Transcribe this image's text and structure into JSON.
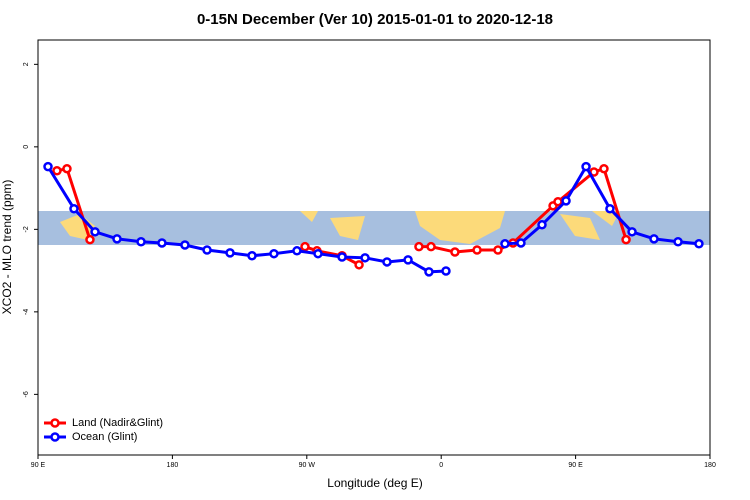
{
  "chart_data": {
    "type": "line",
    "title": "0-15N December (Ver 10)   2015-01-01 to 2020-12-18",
    "x_label": "Longitude (deg E)",
    "y_label": "XCO2 - MLO trend (ppm)",
    "xlim": [
      90,
      540
    ],
    "ylim": [
      -7.47,
      2.59
    ],
    "xticks": [
      {
        "value": 90,
        "label": "90 E"
      },
      180,
      {
        "value": 270,
        "label": "90 W"
      },
      {
        "value": 360,
        "label": "0"
      },
      {
        "value": 450,
        "label": "90 E"
      },
      {
        "value": 540,
        "label": "180"
      }
    ],
    "yticks": [
      2,
      0,
      -2,
      -4,
      -6
    ],
    "legend": "bottom-left",
    "series": [
      {
        "name": "Land (Nadir&Glint)",
        "color": "#ff0000",
        "x": [
          102.7,
          109.4,
          124.8,
          null,
          268.8,
          276.8,
          293.6,
          305.0,
          null,
          345.1,
          353.2,
          369.2,
          384.0,
          398.0,
          408.1,
          434.9,
          438.2,
          462.3,
          469.0,
          483.8
        ],
        "values": [
          -0.58,
          -0.53,
          -2.25,
          null,
          -2.42,
          -2.52,
          -2.64,
          -2.86,
          null,
          -2.42,
          -2.42,
          -2.55,
          -2.5,
          -2.5,
          -2.33,
          -1.43,
          -1.33,
          -0.61,
          -0.53,
          -2.25
        ]
      },
      {
        "name": "Ocean (Glint)",
        "color": "#0000ff",
        "x": [
          96.7,
          114.1,
          128.2,
          142.9,
          159.0,
          173.0,
          188.4,
          203.2,
          218.6,
          233.3,
          248.0,
          263.4,
          277.5,
          293.6,
          309.0,
          323.7,
          337.8,
          351.8,
          363.2,
          null,
          402.7,
          413.4,
          427.5,
          443.6,
          457.0,
          473.0,
          487.8,
          502.5,
          518.6,
          532.6
        ],
        "values": [
          -0.48,
          -1.5,
          -2.06,
          -2.23,
          -2.3,
          -2.33,
          -2.38,
          -2.5,
          -2.57,
          -2.64,
          -2.59,
          -2.52,
          -2.59,
          -2.67,
          -2.69,
          -2.79,
          -2.74,
          -3.03,
          -3.01,
          null,
          -2.35,
          -2.33,
          -1.89,
          -1.31,
          -0.48,
          -1.5,
          -2.06,
          -2.23,
          -2.3,
          -2.35
        ]
      }
    ]
  }
}
